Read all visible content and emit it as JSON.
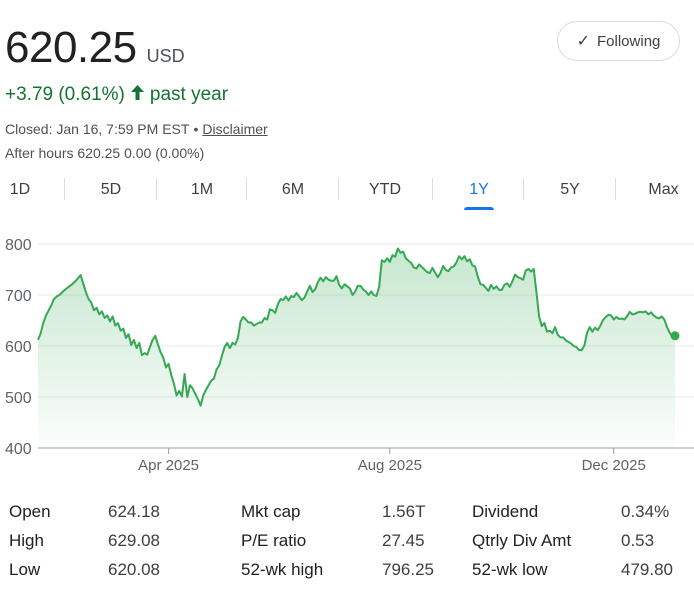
{
  "quote": {
    "price": "620.25",
    "currency": "USD",
    "change": "+3.79 (0.61%)",
    "change_arrow": "up-arrow-icon",
    "change_period": "past year",
    "closed_text": "Closed: Jan 16, 7:59 PM EST",
    "bullet": "•",
    "disclaimer": "Disclaimer",
    "after_hours": "After hours 620.25 0.00 (0.00%)",
    "positive_color": "#137333"
  },
  "follow": {
    "label": "Following",
    "icon": "check-icon"
  },
  "tabs": [
    {
      "label": "1D",
      "active": false
    },
    {
      "label": "5D",
      "active": false
    },
    {
      "label": "1M",
      "active": false
    },
    {
      "label": "6M",
      "active": false
    },
    {
      "label": "YTD",
      "active": false
    },
    {
      "label": "1Y",
      "active": true
    },
    {
      "label": "5Y",
      "active": false
    },
    {
      "label": "Max",
      "active": false
    }
  ],
  "chart_data": {
    "type": "area",
    "title": "",
    "xlabel": "",
    "ylabel": "",
    "ylim": [
      400,
      800
    ],
    "yticks": [
      "800",
      "700",
      "600",
      "500",
      "400"
    ],
    "xticks": [
      "Apr 2025",
      "Aug 2025",
      "Dec 2025"
    ],
    "grid": true,
    "line_color": "#34a853",
    "series": [
      {
        "values": [
          612,
          625,
          645,
          660,
          670,
          680,
          692,
          697,
          700,
          705,
          710,
          714,
          718,
          722,
          727,
          733,
          739,
          722,
          705,
          692,
          685,
          670,
          675,
          662,
          668,
          655,
          660,
          648,
          658,
          640,
          645,
          630,
          634,
          616,
          623,
          602,
          612,
          596,
          606,
          582,
          586,
          583,
          598,
          612,
          620,
          603,
          588,
          577,
          558,
          565,
          543,
          526,
          503,
          512,
          501,
          545,
          500,
          523,
          517,
          506,
          496,
          483,
          503,
          514,
          523,
          532,
          536,
          554,
          562,
          581,
          598,
          606,
          596,
          606,
          603,
          616,
          648,
          657,
          652,
          646,
          646,
          640,
          643,
          646,
          646,
          655,
          652,
          672,
          670,
          665,
          682,
          692,
          690,
          697,
          689,
          698,
          696,
          704,
          697,
          690,
          695,
          707,
          718,
          706,
          711,
          725,
          734,
          727,
          735,
          730,
          728,
          728,
          737,
          720,
          713,
          721,
          717,
          713,
          700,
          707,
          718,
          718,
          711,
          707,
          700,
          707,
          700,
          698,
          716,
          768,
          765,
          772,
          765,
          778,
          775,
          791,
          783,
          785,
          772,
          767,
          763,
          754,
          752,
          760,
          755,
          750,
          745,
          743,
          753,
          744,
          735,
          743,
          757,
          749,
          747,
          754,
          756,
          764,
          776,
          770,
          776,
          766,
          770,
          758,
          756,
          736,
          721,
          720,
          714,
          708,
          720,
          712,
          717,
          710,
          710,
          720,
          723,
          716,
          727,
          740,
          735,
          733,
          730,
          748,
          751,
          746,
          751,
          706,
          658,
          639,
          645,
          628,
          630,
          625,
          637,
          622,
          617,
          617,
          611,
          608,
          605,
          600,
          598,
          592,
          592,
          601,
          626,
          637,
          628,
          636,
          631,
          640,
          651,
          657,
          661,
          660,
          652,
          657,
          653,
          654,
          652,
          658,
          667,
          662,
          663,
          666,
          667,
          666,
          668,
          662,
          666,
          660,
          656,
          654,
          658,
          652,
          637,
          626,
          618,
          620
        ]
      }
    ]
  },
  "stats": {
    "rows": [
      [
        {
          "label": "Open",
          "value": "624.18"
        },
        {
          "label": "Mkt cap",
          "value": "1.56T"
        },
        {
          "label": "Dividend",
          "value": "0.34%"
        }
      ],
      [
        {
          "label": "High",
          "value": "629.08"
        },
        {
          "label": "P/E ratio",
          "value": "27.45"
        },
        {
          "label": "Qtrly Div Amt",
          "value": "0.53"
        }
      ],
      [
        {
          "label": "Low",
          "value": "620.08"
        },
        {
          "label": "52-wk high",
          "value": "796.25"
        },
        {
          "label": "52-wk low",
          "value": "479.80"
        }
      ]
    ]
  }
}
